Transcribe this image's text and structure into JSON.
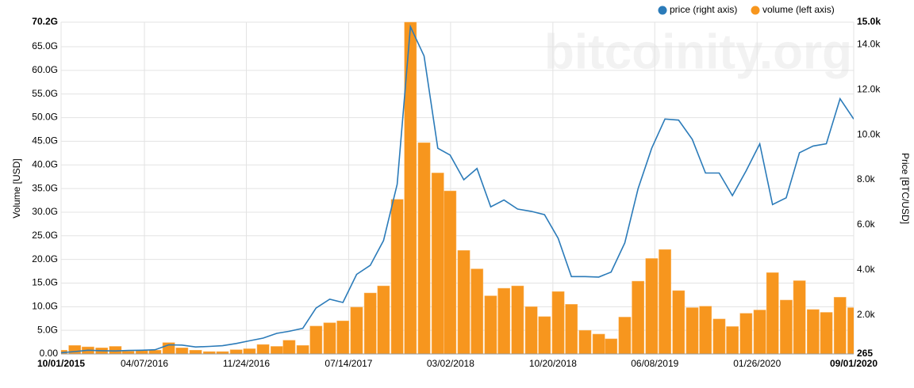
{
  "chart_data": {
    "type": "combo",
    "watermark": "bitcoinity.org",
    "ylabel": "Volume [USD]",
    "y2label": "Price [BTC/USD]",
    "x": [
      "10/01/2015",
      "11/01/2015",
      "12/01/2015",
      "01/01/2016",
      "02/01/2016",
      "03/01/2016",
      "04/01/2016",
      "05/01/2016",
      "06/01/2016",
      "07/01/2016",
      "08/01/2016",
      "09/01/2016",
      "10/01/2016",
      "11/01/2016",
      "12/01/2016",
      "01/01/2017",
      "02/01/2017",
      "03/01/2017",
      "04/01/2017",
      "05/01/2017",
      "06/01/2017",
      "07/01/2017",
      "08/01/2017",
      "09/01/2017",
      "10/01/2017",
      "11/01/2017",
      "12/01/2017",
      "01/01/2018",
      "02/01/2018",
      "03/01/2018",
      "04/01/2018",
      "05/01/2018",
      "06/01/2018",
      "07/01/2018",
      "08/01/2018",
      "09/01/2018",
      "10/01/2018",
      "11/01/2018",
      "12/01/2018",
      "01/01/2019",
      "02/01/2019",
      "03/01/2019",
      "04/01/2019",
      "05/01/2019",
      "06/01/2019",
      "07/01/2019",
      "08/01/2019",
      "09/01/2019",
      "10/01/2019",
      "11/01/2019",
      "12/01/2019",
      "01/01/2020",
      "02/01/2020",
      "03/01/2020",
      "04/01/2020",
      "05/01/2020",
      "06/01/2020",
      "07/01/2020",
      "08/01/2020",
      "09/01/2020"
    ],
    "series": [
      {
        "name": "price (right axis)",
        "type": "line",
        "axis": "y2",
        "color": "#2b7bb9",
        "values": [
          320,
          370,
          430,
          410,
          400,
          420,
          430,
          450,
          670,
          660,
          575,
          600,
          630,
          730,
          850,
          970,
          1180,
          1270,
          1400,
          2300,
          2700,
          2550,
          3800,
          4200,
          5300,
          7800,
          14800,
          13500,
          9400,
          9100,
          8000,
          8500,
          6800,
          7100,
          6700,
          6600,
          6450,
          5400,
          3700,
          3700,
          3680,
          3900,
          5200,
          7600,
          9400,
          10700,
          10650,
          9800,
          8300,
          8300,
          7300,
          8400,
          9600,
          6900,
          7200,
          9200,
          9500,
          9600,
          11600,
          10700
        ]
      },
      {
        "name": "volume (left axis)",
        "type": "bar",
        "color": "#f7961e",
        "values": [
          0.8,
          1.8,
          1.5,
          1.3,
          1.6,
          0.6,
          0.7,
          0.8,
          2.4,
          1.3,
          0.8,
          0.5,
          0.5,
          0.9,
          1.1,
          2.0,
          1.6,
          2.9,
          1.8,
          5.9,
          6.6,
          7.0,
          9.9,
          12.9,
          14.4,
          32.7,
          70.2,
          44.7,
          38.3,
          34.5,
          21.9,
          18.0,
          12.3,
          13.9,
          14.4,
          10.0,
          7.9,
          13.2,
          10.5,
          5.0,
          4.2,
          3.2,
          7.8,
          15.4,
          20.2,
          22.1,
          13.4,
          9.8,
          10.1,
          7.4,
          5.8,
          8.6,
          9.3,
          17.2,
          11.4,
          15.5,
          9.4,
          8.8,
          12.0,
          9.8
        ]
      }
    ],
    "xlim": [
      "10/01/2015",
      "09/01/2020"
    ],
    "xticks": [
      "10/01/2015",
      "04/07/2016",
      "11/24/2016",
      "07/14/2017",
      "03/02/2018",
      "10/20/2018",
      "06/08/2019",
      "01/26/2020",
      "09/01/2020"
    ],
    "ylim": [
      0,
      70.2
    ],
    "yticks": [
      {
        "value": 0,
        "label": "0.00"
      },
      {
        "value": 5,
        "label": "5.0G"
      },
      {
        "value": 10,
        "label": "10.0G"
      },
      {
        "value": 15,
        "label": "15.0G"
      },
      {
        "value": 20,
        "label": "20.0G"
      },
      {
        "value": 25,
        "label": "25.0G"
      },
      {
        "value": 30,
        "label": "30.0G"
      },
      {
        "value": 35,
        "label": "35.0G"
      },
      {
        "value": 40,
        "label": "40.0G"
      },
      {
        "value": 45,
        "label": "45.0G"
      },
      {
        "value": 50,
        "label": "50.0G"
      },
      {
        "value": 55,
        "label": "55.0G"
      },
      {
        "value": 60,
        "label": "60.0G"
      },
      {
        "value": 65,
        "label": "65.0G"
      },
      {
        "value": 70.2,
        "label": "70.2G"
      }
    ],
    "y2lim": [
      265,
      15000
    ],
    "y2ticks": [
      265,
      {
        "value": 2000,
        "label": "2.0k"
      },
      {
        "value": 4000,
        "label": "4.0k"
      },
      {
        "value": 6000,
        "label": "6.0k"
      },
      {
        "value": 8000,
        "label": "8.0k"
      },
      {
        "value": 10000,
        "label": "10.0k"
      },
      {
        "value": 12000,
        "label": "12.0k"
      },
      {
        "value": 14000,
        "label": "14.0k"
      },
      {
        "value": 15000,
        "label": "15.0k"
      }
    ],
    "grid": true
  }
}
